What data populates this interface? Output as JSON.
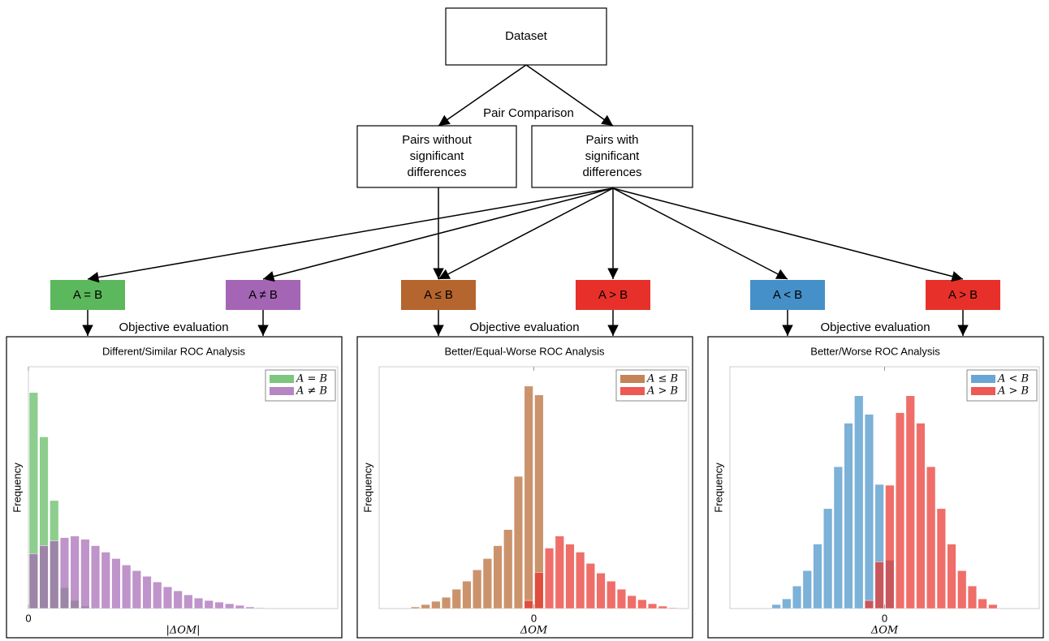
{
  "diagram": {
    "nodes": [
      {
        "lines": [
          "Dataset"
        ]
      },
      {
        "lines": [
          "Pairs without",
          "significant",
          "differences"
        ]
      },
      {
        "lines": [
          "Pairs with",
          "significant",
          "differences"
        ]
      }
    ],
    "edge_label": "Pair Comparison",
    "classes": [
      {
        "label": "A = B",
        "color": "#5cb85c"
      },
      {
        "label": "A ≠ B",
        "color": "#a466b4"
      },
      {
        "label": "A ≤ B",
        "color": "#b5652e"
      },
      {
        "label": "A > B",
        "color": "#e8302a"
      },
      {
        "label": "A < B",
        "color": "#4590c8"
      },
      {
        "label": "A > B",
        "color": "#e8302a"
      }
    ],
    "evaluation_labels": [
      "Objective evaluation",
      "Objective evaluation",
      "Objective evaluation"
    ]
  },
  "chart_data": [
    {
      "type": "histogram",
      "title": "Different/Similar ROC Analysis",
      "x_label": "|ΔOM|",
      "y_label": "Frequency",
      "bins": [
        0,
        1,
        2,
        3,
        4,
        5,
        6,
        7,
        8,
        9,
        10,
        11,
        12,
        13,
        14,
        15,
        16,
        17,
        18,
        19,
        20,
        21,
        22,
        23,
        24,
        25,
        26
      ],
      "xlim": [
        0,
        30
      ],
      "xticks": [
        0
      ],
      "ylim": [
        0,
        300
      ],
      "legend": "upper right",
      "series": [
        {
          "name": "A = B",
          "color": "#5cb85c",
          "values": [
            268,
            213,
            134,
            26,
            10,
            3,
            0,
            0,
            0,
            0,
            0,
            0,
            0,
            0,
            0,
            0,
            0,
            0,
            0,
            0,
            0,
            0,
            0,
            0,
            0,
            0
          ]
        },
        {
          "name": "A ≠ B",
          "color": "#a466b4",
          "values": [
            68,
            78,
            84,
            88,
            90,
            86,
            78,
            70,
            62,
            54,
            47,
            40,
            33,
            27,
            22,
            17,
            13,
            10,
            8,
            6,
            4,
            2,
            1,
            0,
            0,
            0
          ]
        }
      ]
    },
    {
      "type": "histogram",
      "title": "Better/Equal-Worse ROC Analysis",
      "x_label": "ΔOM",
      "y_label": "Frequency",
      "bins": [
        -12,
        -11,
        -10,
        -9,
        -8,
        -7,
        -6,
        -5,
        -4,
        -3,
        -2,
        -1,
        0,
        1,
        2,
        3,
        4,
        5,
        6,
        7,
        8,
        9,
        10,
        11,
        12,
        13,
        14,
        15
      ],
      "xlim": [
        -15,
        15
      ],
      "xticks": [
        0
      ],
      "ylim": [
        0,
        300
      ],
      "legend": "upper right",
      "series": [
        {
          "name": "A ≤ B",
          "color": "#b5652e",
          "values": [
            2,
            5,
            9,
            14,
            24,
            34,
            48,
            62,
            78,
            98,
            164,
            276,
            265,
            0,
            0,
            0,
            0,
            0,
            0,
            0,
            0,
            0,
            0,
            0,
            0,
            0,
            0
          ]
        },
        {
          "name": "A > B",
          "color": "#e8302a",
          "values": [
            0,
            0,
            0,
            0,
            0,
            0,
            0,
            0,
            0,
            0,
            0,
            10,
            45,
            75,
            90,
            80,
            70,
            56,
            44,
            34,
            24,
            16,
            11,
            6,
            3,
            1,
            0
          ]
        }
      ]
    },
    {
      "type": "histogram",
      "title": "Better/Worse ROC Analysis",
      "x_label": "ΔOM",
      "y_label": "Frequency",
      "bins": [
        -12,
        -11,
        -10,
        -9,
        -8,
        -7,
        -6,
        -5,
        -4,
        -3,
        -2,
        -1,
        0,
        1,
        2,
        3,
        4,
        5,
        6,
        7,
        8,
        9,
        10,
        11,
        12,
        13
      ],
      "xlim": [
        -15,
        15
      ],
      "xticks": [
        0
      ],
      "ylim": [
        0,
        300
      ],
      "legend": "upper right",
      "series": [
        {
          "name": "A < B",
          "color": "#4590c8",
          "values": [
            0,
            5,
            12,
            28,
            47,
            80,
            124,
            176,
            230,
            264,
            241,
            154,
            60,
            0,
            0,
            0,
            0,
            0,
            0,
            0,
            0,
            0,
            0,
            0,
            0
          ]
        },
        {
          "name": "A > B",
          "color": "#e8302a",
          "values": [
            0,
            0,
            0,
            0,
            0,
            0,
            0,
            0,
            0,
            0,
            10,
            58,
            153,
            243,
            264,
            230,
            176,
            124,
            80,
            47,
            28,
            12,
            5,
            0,
            0
          ]
        }
      ]
    }
  ]
}
